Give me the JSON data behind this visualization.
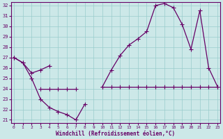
{
  "xlabel": "Windchill (Refroidissement éolien,°C)",
  "background_color": "#cce8e8",
  "grid_color": "#99cccc",
  "line_color": "#660066",
  "x": [
    0,
    1,
    2,
    3,
    4,
    5,
    6,
    7,
    8,
    9,
    10,
    11,
    12,
    13,
    14,
    15,
    16,
    17,
    18,
    19,
    20,
    21,
    22,
    23
  ],
  "line1_y": [
    27.0,
    26.5,
    25.0,
    23.0,
    22.2,
    21.8,
    21.5,
    21.0,
    22.5,
    null,
    null,
    null,
    null,
    null,
    null,
    null,
    null,
    null,
    null,
    null,
    null,
    null,
    null,
    null
  ],
  "line2_y": [
    null,
    null,
    null,
    24.0,
    24.0,
    24.0,
    24.0,
    24.0,
    null,
    null,
    24.2,
    24.2,
    24.2,
    24.2,
    24.2,
    24.2,
    24.2,
    24.2,
    24.2,
    24.2,
    24.2,
    24.2,
    24.2,
    24.2
  ],
  "line3_y": [
    27.0,
    26.5,
    25.5,
    25.8,
    26.2,
    null,
    null,
    null,
    null,
    null,
    24.2,
    25.8,
    27.2,
    28.2,
    28.8,
    29.5,
    32.0,
    32.2,
    31.8,
    30.2,
    27.8,
    31.5,
    26.0,
    24.2
  ],
  "ylim_min": 21,
  "ylim_max": 32,
  "xlim_min": 0,
  "xlim_max": 23
}
